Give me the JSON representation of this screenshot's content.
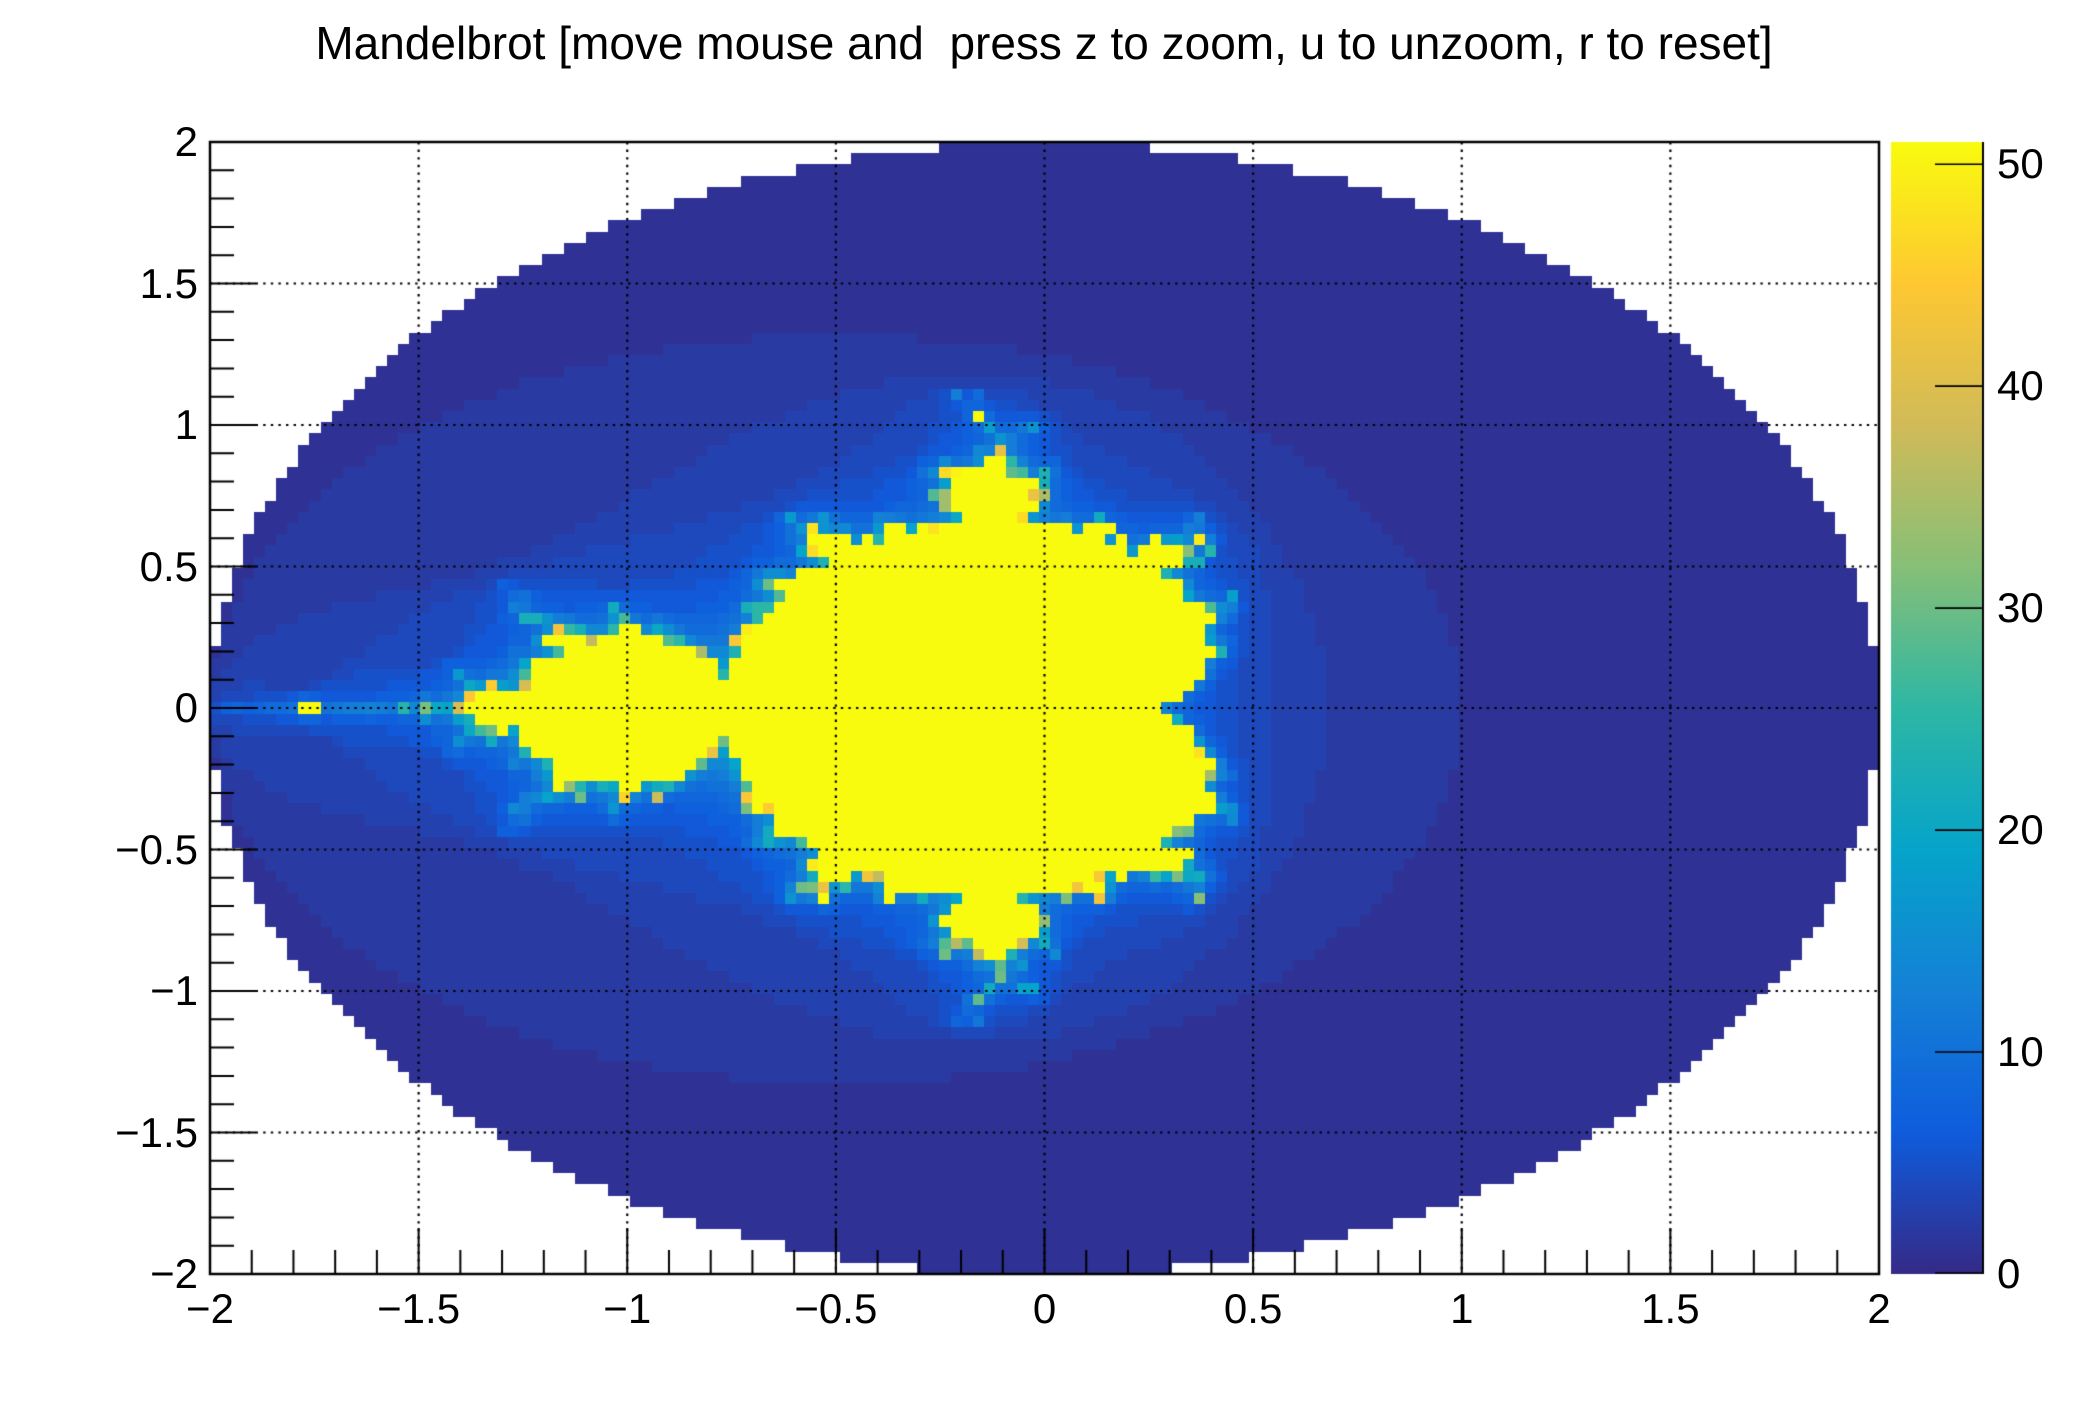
{
  "chart_data": {
    "type": "heatmap",
    "title": "Mandelbrot [move mouse and  press z to zoom, u to unzoom, r to reset]",
    "algorithm": "mandelbrot-escape-time",
    "algorithm_note": "value = number of completed iterations of z -> z^2 + c before |z| > 2; points with |c| > 2 give 0 and are drawn as empty (white) bins; points that never escape are set to max_iterations (yellow)",
    "x_range": [
      -2,
      2
    ],
    "y_range": [
      -2,
      2
    ],
    "nbins_x": 151,
    "nbins_y": 101,
    "max_iterations": 51,
    "zmin": 0,
    "zmax": 51,
    "empty_bin_color": "#ffffff",
    "background_color": "#ffffff",
    "axis_color": "#000000",
    "palette_name": "bird",
    "palette_stops": [
      "#352A87",
      "#0F5CDD",
      "#1481D6",
      "#06A4CA",
      "#2EB7A4",
      "#87BF77",
      "#D1BB59",
      "#FEC832",
      "#F9FB0E"
    ],
    "x_ticks": {
      "values": [
        -2,
        -1.5,
        -1,
        -0.5,
        0,
        0.5,
        1,
        1.5,
        2
      ],
      "labels": [
        "−2",
        "−1.5",
        "−1",
        "−0.5",
        "0",
        "0.5",
        "1",
        "1.5",
        "2"
      ],
      "minor_divisions": 5
    },
    "y_ticks": {
      "values": [
        -2,
        -1.5,
        -1,
        -0.5,
        0,
        0.5,
        1,
        1.5,
        2
      ],
      "labels": [
        "−2",
        "−1.5",
        "−1",
        "−0.5",
        "0",
        "0.5",
        "1",
        "1.5",
        "2"
      ],
      "minor_divisions": 5
    },
    "z_ticks": {
      "values": [
        0,
        10,
        20,
        30,
        40,
        50
      ],
      "labels": [
        "0",
        "10",
        "20",
        "30",
        "40",
        "50"
      ]
    },
    "grid": {
      "show": true,
      "line_style": "dotted",
      "color": "#000000"
    },
    "legend_position": "right-color-bar"
  }
}
